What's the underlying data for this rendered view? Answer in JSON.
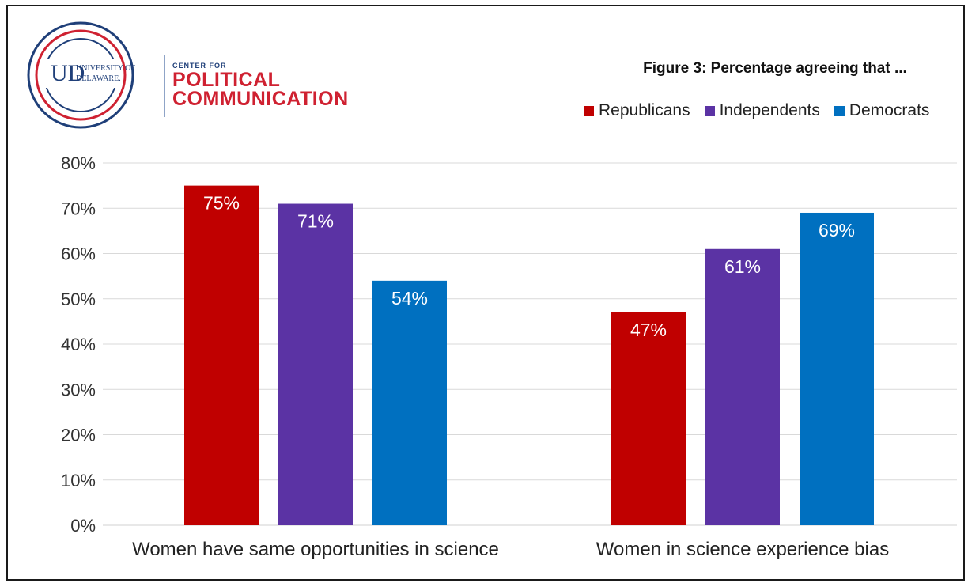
{
  "logo": {
    "university_line1": "UNIVERSITY OF",
    "university_line2": "DELAWARE.",
    "center_for": "CENTER FOR",
    "political": "POLITICAL",
    "communication": "COMMUNICATION",
    "colors": {
      "blue": "#1f3f79",
      "red": "#cf2131"
    }
  },
  "chart_data": {
    "type": "bar",
    "title": "Figure 3: Percentage agreeing that ...",
    "categories": [
      "Women have same opportunities in science",
      "Women in science experience bias"
    ],
    "series": [
      {
        "name": "Republicans",
        "values": [
          75,
          47
        ],
        "labels": [
          "75%",
          "47%"
        ],
        "color": "#c00000"
      },
      {
        "name": "Independents",
        "values": [
          71,
          61
        ],
        "labels": [
          "71%",
          "61%"
        ],
        "color": "#5b33a4"
      },
      {
        "name": "Democrats",
        "values": [
          54,
          69
        ],
        "labels": [
          "54%",
          "69%"
        ],
        "color": "#0070c0"
      }
    ],
    "ylim": [
      0,
      80
    ],
    "yticks": [
      "0%",
      "10%",
      "20%",
      "30%",
      "40%",
      "50%",
      "60%",
      "70%",
      "80%"
    ],
    "xlabel": "",
    "ylabel": "",
    "grid": true,
    "legend": "top-right"
  }
}
